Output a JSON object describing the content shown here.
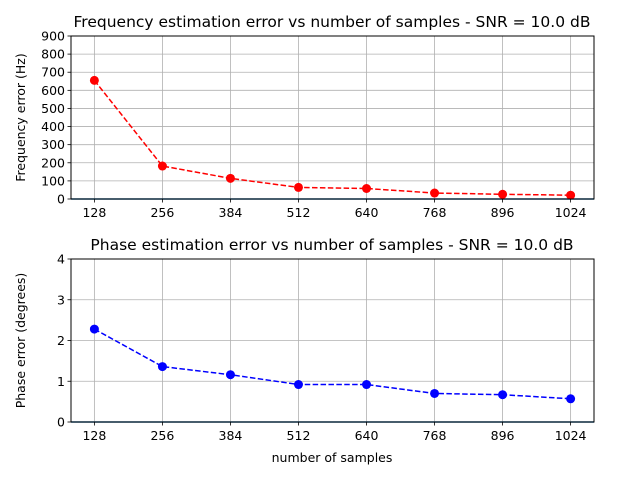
{
  "chart_data": [
    {
      "type": "line",
      "title": "Frequency estimation error vs number of samples - SNR = 10.0 dB",
      "xlabel": "",
      "ylabel": "Frequency error (Hz)",
      "x": [
        128,
        256,
        384,
        512,
        640,
        768,
        896,
        1024
      ],
      "xticks": [
        "128",
        "256",
        "384",
        "512",
        "640",
        "768",
        "896",
        "1024"
      ],
      "yticks": [
        "0",
        "100",
        "200",
        "300",
        "400",
        "500",
        "600",
        "700",
        "800",
        "900"
      ],
      "ylim": [
        0,
        900
      ],
      "grid": true,
      "series": [
        {
          "values": [
            655,
            182,
            114,
            64,
            58,
            33,
            26,
            21
          ],
          "color": "#ff0000",
          "linestyle": "dashed",
          "marker": "circle"
        }
      ],
      "baseline_color": "#1f77b4"
    },
    {
      "type": "line",
      "title": "Phase estimation error vs number of samples - SNR = 10.0 dB",
      "xlabel": "number of samples",
      "ylabel": "Phase error (degrees)",
      "x": [
        128,
        256,
        384,
        512,
        640,
        768,
        896,
        1024
      ],
      "xticks": [
        "128",
        "256",
        "384",
        "512",
        "640",
        "768",
        "896",
        "1024"
      ],
      "yticks": [
        "0",
        "1",
        "2",
        "3",
        "4"
      ],
      "ylim": [
        0,
        4
      ],
      "grid": true,
      "series": [
        {
          "values": [
            2.28,
            1.36,
            1.16,
            0.92,
            0.92,
            0.7,
            0.67,
            0.57
          ],
          "color": "#0000ff",
          "linestyle": "dashed",
          "marker": "circle"
        }
      ],
      "baseline_color": "#1f77b4"
    }
  ]
}
